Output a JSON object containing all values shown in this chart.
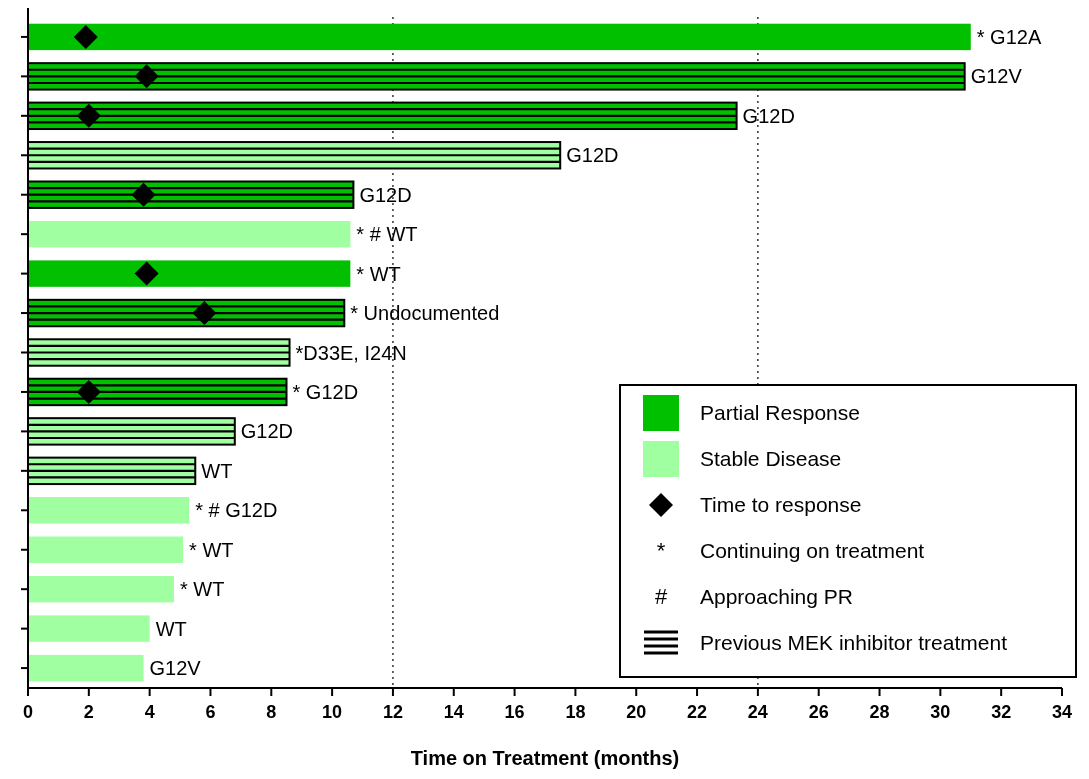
{
  "chart_data": {
    "type": "bar",
    "orientation": "horizontal",
    "stacked": true,
    "xlabel": "Time on Treatment (months)",
    "categories": [
      null,
      null,
      null,
      null,
      null,
      null,
      null,
      null,
      null,
      null,
      null,
      null,
      null,
      null,
      null,
      null,
      null
    ],
    "xlim": [
      0,
      34
    ],
    "xticks": [
      0,
      2,
      4,
      6,
      8,
      10,
      12,
      14,
      16,
      18,
      20,
      22,
      24,
      26,
      28,
      30,
      32,
      34
    ],
    "series": [
      {
        "name": "Partial Response",
        "color": "#00c000",
        "values": [
          31.0,
          null,
          null,
          null,
          null,
          null,
          10.6,
          null,
          null,
          null,
          null,
          null,
          null,
          null,
          null,
          null,
          null
        ]
      },
      {
        "name": "Stable Disease",
        "color": "#a0ffa0",
        "values": [
          null,
          null,
          null,
          null,
          null,
          10.6,
          null,
          null,
          null,
          null,
          null,
          null,
          5.3,
          5.1,
          4.8,
          4.0,
          3.8
        ]
      },
      {
        "name": "Time to response",
        "type": "scatter",
        "marker": "diamond",
        "color": "#000000",
        "values": [
          1.9,
          3.9,
          2.0,
          null,
          3.8,
          null,
          3.9,
          5.8,
          null,
          2.0,
          null,
          null,
          null,
          null,
          null,
          null,
          null
        ]
      },
      {
        "name": "Previous MEK inhibitor treatment",
        "colors": [
          null,
          "#00c000",
          "#00c000",
          "#a0ffa0",
          "#00c000",
          null,
          null,
          "#00c000",
          "#a0ffa0",
          "#00c000",
          "#a0ffa0",
          "#a0ffa0",
          null,
          null,
          null,
          null,
          null
        ],
        "values": [
          null,
          30.8,
          23.3,
          17.5,
          10.7,
          null,
          null,
          10.4,
          8.6,
          8.5,
          6.8,
          5.5,
          null,
          null,
          null,
          null,
          null
        ]
      }
    ],
    "ref_lines": [
      {
        "axis": "x",
        "value": 12,
        "line_style": "dotted",
        "color": "#000000"
      },
      {
        "axis": "x",
        "value": 24,
        "line_style": "dotted",
        "color": "#000000"
      }
    ],
    "annotations": [
      {
        "text": "* G12A",
        "x": 31.0
      },
      {
        "text": "G12V",
        "x": 30.8
      },
      {
        "text": "G12D",
        "x": 23.3
      },
      {
        "text": "G12D",
        "x": 17.5
      },
      {
        "text": "G12D",
        "x": 10.7
      },
      {
        "text": "* # WT",
        "x": 10.6
      },
      {
        "text": "* WT",
        "x": 10.6
      },
      {
        "text": "* Undocumented",
        "x": 10.4
      },
      {
        "text": "*D33E, I24N",
        "x": 8.6
      },
      {
        "text": "* G12D",
        "x": 8.5
      },
      {
        "text": "G12D",
        "x": 6.8
      },
      {
        "text": "WT",
        "x": 5.5
      },
      {
        "text": "* # G12D",
        "x": 5.3
      },
      {
        "text": "* WT",
        "x": 5.1
      },
      {
        "text": "* WT",
        "x": 4.8
      },
      {
        "text": "WT",
        "x": 4.0
      },
      {
        "text": "G12V",
        "x": 3.8
      },
      "* Continuing on treatment",
      "# Approaching PR"
    ],
    "legend": "bottom right",
    "tick_labels": "x"
  }
}
